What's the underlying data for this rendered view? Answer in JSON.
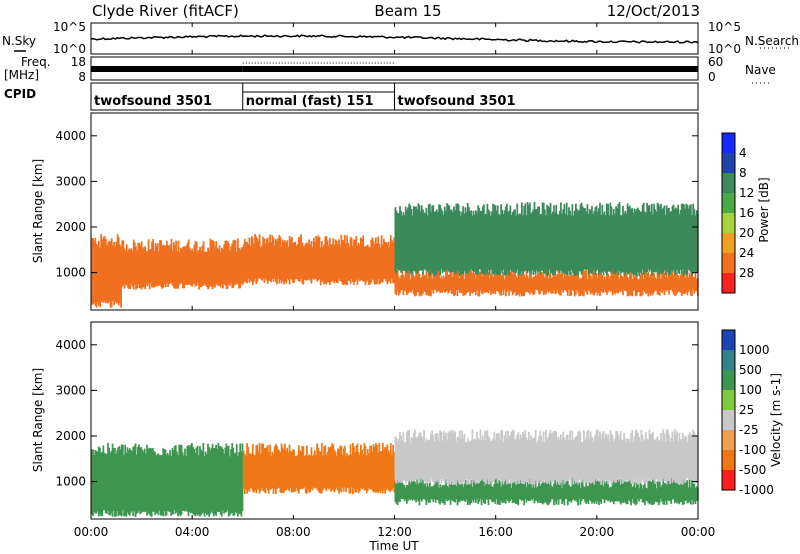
{
  "header": {
    "station": "Clyde River (fitACF)",
    "beam": "Beam 15",
    "date": "12/Oct/2013"
  },
  "noise_panel": {
    "left_label": "N.Sky",
    "right_label": "N.Search",
    "left_ticks": [
      "10^5",
      "10^0"
    ],
    "right_ticks": [
      "10^5",
      "10^0"
    ]
  },
  "freq_panel": {
    "left_label_1": "Freq.",
    "left_label_2": "[MHz]",
    "right_label": "Nave",
    "left_ticks": [
      "18",
      "8"
    ],
    "right_ticks": [
      "60",
      "0"
    ]
  },
  "cpid_panel": {
    "label": "CPID",
    "segments": [
      {
        "label": "twofsound 3501",
        "start_hour": 0,
        "end_hour": 6
      },
      {
        "label": "normal (fast) 151",
        "start_hour": 6,
        "end_hour": 12
      },
      {
        "label": "twofsound 3501",
        "start_hour": 12,
        "end_hour": 24
      }
    ]
  },
  "time_axis": {
    "label": "Time UT",
    "range_hours": [
      0,
      24
    ],
    "tick_labels": [
      "00:00",
      "04:00",
      "08:00",
      "12:00",
      "16:00",
      "20:00",
      "00:00"
    ],
    "tick_hours": [
      0,
      4,
      8,
      12,
      16,
      20,
      24
    ]
  },
  "chart_data": [
    {
      "type": "heatmap",
      "name": "power",
      "ylabel": "Slant Range [km]",
      "ylim": [
        180,
        4500
      ],
      "y_ticks": [
        1000,
        2000,
        3000,
        4000
      ],
      "colorbar_label": "Power [dB]",
      "colorbar_ticks": [
        "4",
        "8",
        "12",
        "16",
        "20",
        "24",
        "28"
      ],
      "colorbar_colors": [
        "#1428ff",
        "#2244aa",
        "#3a8a5a",
        "#4caa46",
        "#a8d23c",
        "#f0a020",
        "#f07020",
        "#ff2020"
      ],
      "scatter_bands": [
        {
          "hour_start": 0.0,
          "hour_end": 1.2,
          "range_lo": 300,
          "range_hi": 1700,
          "power_db": 27
        },
        {
          "hour_start": 1.2,
          "hour_end": 6.0,
          "range_lo": 700,
          "range_hi": 1600,
          "power_db": 26
        },
        {
          "hour_start": 6.0,
          "hour_end": 12.0,
          "range_lo": 800,
          "range_hi": 1700,
          "power_db": 25
        },
        {
          "hour_start": 12.0,
          "hour_end": 24.0,
          "range_lo": 550,
          "range_hi": 1000,
          "power_db": 27
        },
        {
          "hour_start": 12.0,
          "hour_end": 24.0,
          "range_lo": 1000,
          "range_hi": 2400,
          "power_db": 8
        }
      ]
    },
    {
      "type": "heatmap",
      "name": "velocity",
      "ylabel": "Slant Range [km]",
      "ylim": [
        180,
        4500
      ],
      "y_ticks": [
        1000,
        2000,
        3000,
        4000
      ],
      "colorbar_label": "Velocity [m s-1]",
      "colorbar_ticks": [
        "1000",
        "500",
        "100",
        "25",
        "-25",
        "-100",
        "-500",
        "-1000"
      ],
      "colorbar_colors": [
        "#1a46b4",
        "#32828c",
        "#3c9650",
        "#82c83c",
        "#c8c8c8",
        "#f0a050",
        "#f07814",
        "#ff1e1e"
      ],
      "scatter_bands": [
        {
          "hour_start": 0.0,
          "hour_end": 6.0,
          "range_lo": 300,
          "range_hi": 1700,
          "velocity": 150
        },
        {
          "hour_start": 6.0,
          "hour_end": 12.0,
          "range_lo": 800,
          "range_hi": 1700,
          "velocity": -300
        },
        {
          "hour_start": 12.0,
          "hour_end": 24.0,
          "range_lo": 550,
          "range_hi": 1000,
          "velocity": 200
        },
        {
          "hour_start": 12.0,
          "hour_end": 24.0,
          "range_lo": 1000,
          "range_hi": 2000,
          "velocity": 0
        }
      ]
    }
  ]
}
